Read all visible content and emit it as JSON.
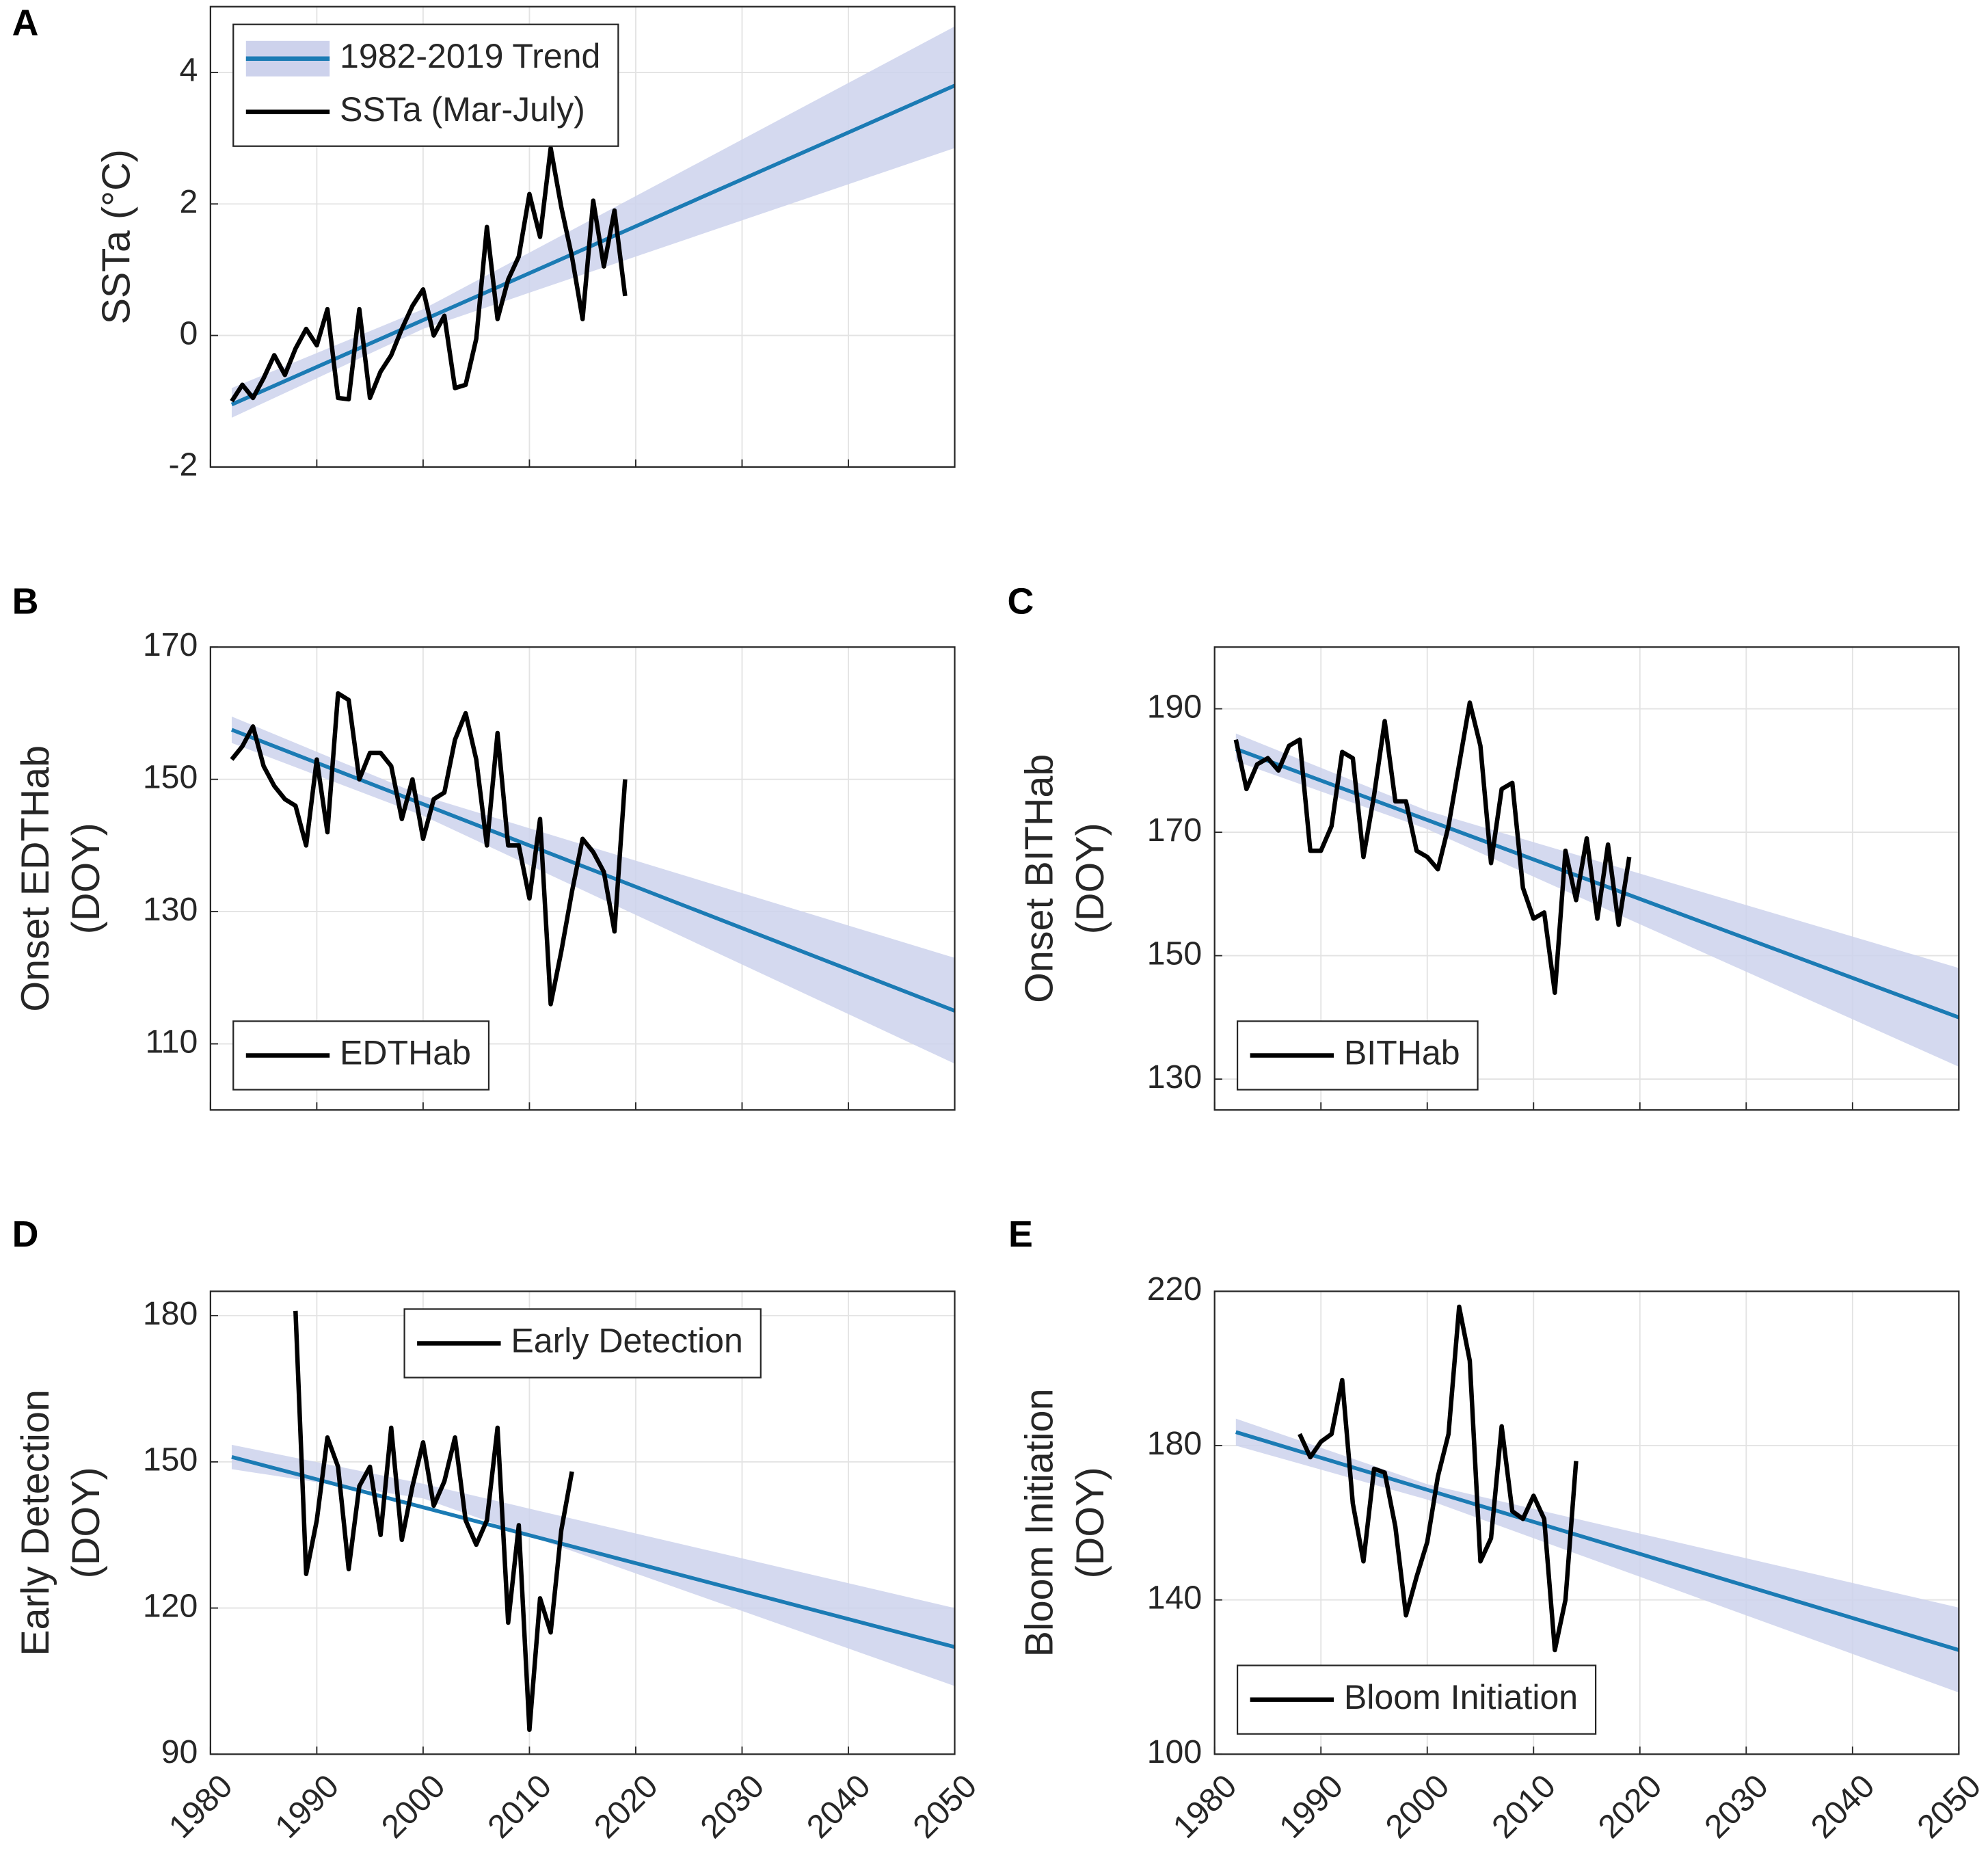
{
  "chart_data": [
    {
      "type": "line",
      "panel": "A",
      "ylabel": [
        "SSTa (°C)"
      ],
      "xlim": [
        1980,
        2050
      ],
      "xticks": [
        1980,
        1990,
        2000,
        2010,
        2020,
        2030,
        2040,
        2050
      ],
      "show_xtick_labels": false,
      "ylim": [
        -2,
        5
      ],
      "yticks": [
        -2,
        0,
        2,
        4
      ],
      "grid": true,
      "legend": "upper left",
      "band": {
        "x": [
          1982,
          2000,
          2050
        ],
        "lower": [
          -1.25,
          0.1,
          2.85
        ],
        "upper": [
          -0.8,
          0.4,
          4.7
        ],
        "color": "#cdd2ec"
      },
      "series": [
        {
          "name": "1982-2019 Trend",
          "color": "#1b7bb4",
          "x": [
            1982,
            2050
          ],
          "values": [
            -1.05,
            3.8
          ]
        },
        {
          "name": "SSTa (Mar-July)",
          "color": "#000000",
          "x": [
            1982,
            1983,
            1984,
            1985,
            1986,
            1987,
            1988,
            1989,
            1990,
            1991,
            1992,
            1993,
            1994,
            1995,
            1996,
            1997,
            1998,
            1999,
            2000,
            2001,
            2002,
            2003,
            2004,
            2005,
            2006,
            2007,
            2008,
            2009,
            2010,
            2011,
            2012,
            2013,
            2014,
            2015,
            2016,
            2017,
            2018,
            2019
          ],
          "values": [
            -1.0,
            -0.75,
            -0.95,
            -0.65,
            -0.3,
            -0.6,
            -0.2,
            0.1,
            -0.15,
            0.4,
            -0.95,
            -0.97,
            0.4,
            -0.95,
            -0.55,
            -0.3,
            0.1,
            0.45,
            0.7,
            0.0,
            0.3,
            -0.8,
            -0.75,
            -0.05,
            1.65,
            0.25,
            0.85,
            1.2,
            2.15,
            1.5,
            2.85,
            1.95,
            1.2,
            0.25,
            2.05,
            1.05,
            1.9,
            0.6
          ]
        }
      ]
    },
    {
      "type": "line",
      "panel": "B",
      "ylabel": [
        "Onset EDTHab",
        "(DOY)"
      ],
      "xlim": [
        1980,
        2050
      ],
      "xticks": [
        1980,
        1990,
        2000,
        2010,
        2020,
        2030,
        2040,
        2050
      ],
      "show_xtick_labels": false,
      "ylim": [
        100,
        170
      ],
      "yticks": [
        110,
        130,
        150,
        170
      ],
      "grid": true,
      "legend": "lower left",
      "band": {
        "x": [
          1982,
          2000,
          2050
        ],
        "lower": [
          155.5,
          144.5,
          107
        ],
        "upper": [
          159.5,
          147.5,
          123
        ],
        "color": "#cdd2ec"
      },
      "series": [
        {
          "color": "#1b7bb4",
          "x": [
            1982,
            2050
          ],
          "values": [
            157.5,
            115
          ]
        },
        {
          "name": "EDTHab",
          "color": "#000000",
          "x": [
            1982,
            1983,
            1984,
            1985,
            1986,
            1987,
            1988,
            1989,
            1990,
            1991,
            1992,
            1993,
            1994,
            1995,
            1996,
            1997,
            1998,
            1999,
            2000,
            2001,
            2002,
            2003,
            2004,
            2005,
            2006,
            2007,
            2008,
            2009,
            2010,
            2011,
            2012,
            2013,
            2014,
            2015,
            2016,
            2017,
            2018,
            2019
          ],
          "values": [
            153,
            155,
            158,
            152,
            149,
            147,
            146,
            140,
            153,
            142,
            163,
            162,
            150,
            154,
            154,
            152,
            144,
            150,
            141,
            147,
            148,
            156,
            160,
            153,
            140,
            157,
            140,
            140,
            132,
            144,
            116,
            124,
            133,
            141,
            139,
            136,
            127,
            150
          ]
        }
      ]
    },
    {
      "type": "line",
      "panel": "C",
      "ylabel": [
        "Onset BITHab",
        "(DOY)"
      ],
      "xlim": [
        1980,
        2050
      ],
      "xticks": [
        1980,
        1990,
        2000,
        2010,
        2020,
        2030,
        2040,
        2050
      ],
      "show_xtick_labels": false,
      "ylim": [
        125,
        200
      ],
      "yticks": [
        130,
        150,
        170,
        190
      ],
      "grid": true,
      "legend": "lower left",
      "band": {
        "x": [
          1982,
          2000,
          2050
        ],
        "lower": [
          181.5,
          170.5,
          132
        ],
        "upper": [
          186,
          173.5,
          148
        ],
        "color": "#cdd2ec"
      },
      "series": [
        {
          "color": "#1b7bb4",
          "x": [
            1982,
            2050
          ],
          "values": [
            183.5,
            140
          ]
        },
        {
          "name": "BITHab",
          "color": "#000000",
          "x": [
            1982,
            1983,
            1984,
            1985,
            1986,
            1987,
            1988,
            1989,
            1990,
            1991,
            1992,
            1993,
            1994,
            1995,
            1996,
            1997,
            1998,
            1999,
            2000,
            2001,
            2002,
            2003,
            2004,
            2005,
            2006,
            2007,
            2008,
            2009,
            2010,
            2011,
            2012,
            2013,
            2014,
            2015,
            2016,
            2017,
            2018,
            2019
          ],
          "values": [
            185,
            177,
            181,
            182,
            180,
            184,
            185,
            167,
            167,
            171,
            183,
            182,
            166,
            176,
            188,
            175,
            175,
            167,
            166,
            164,
            171,
            181,
            191,
            184,
            165,
            177,
            178,
            161,
            156,
            157,
            144,
            167,
            159,
            169,
            156,
            168,
            155,
            166
          ]
        }
      ]
    },
    {
      "type": "line",
      "panel": "D",
      "ylabel": [
        "Early Detection",
        "(DOY)"
      ],
      "xlim": [
        1980,
        2050
      ],
      "xticks": [
        1980,
        1990,
        2000,
        2010,
        2020,
        2030,
        2040,
        2050
      ],
      "show_xtick_labels": true,
      "ylim": [
        90,
        185
      ],
      "yticks": [
        90,
        120,
        150,
        180
      ],
      "grid": true,
      "legend": "upper center",
      "band": {
        "x": [
          1982,
          2000,
          2050
        ],
        "lower": [
          148.5,
          142.5,
          104
        ],
        "upper": [
          153.5,
          145.5,
          120
        ],
        "color": "#cdd2ec"
      },
      "series": [
        {
          "color": "#1b7bb4",
          "x": [
            1982,
            2050
          ],
          "values": [
            151,
            112
          ]
        },
        {
          "name": "Early Detection",
          "color": "#000000",
          "x": [
            1988,
            1989,
            1990,
            1991,
            1992,
            1993,
            1994,
            1995,
            1996,
            1997,
            1998,
            1999,
            2000,
            2001,
            2002,
            2003,
            2004,
            2005,
            2006,
            2007,
            2008,
            2009,
            2010,
            2011,
            2012,
            2013,
            2014
          ],
          "values": [
            181,
            127,
            138,
            155,
            149,
            128,
            145,
            149,
            135,
            157,
            134,
            145,
            154,
            141,
            146,
            155,
            138,
            133,
            138,
            157,
            117,
            137,
            95,
            122,
            115,
            136,
            148
          ]
        }
      ]
    },
    {
      "type": "line",
      "panel": "E",
      "ylabel": [
        "Bloom Initiation",
        "(DOY)"
      ],
      "xlim": [
        1980,
        2050
      ],
      "xticks": [
        1980,
        1990,
        2000,
        2010,
        2020,
        2030,
        2040,
        2050
      ],
      "show_xtick_labels": true,
      "ylim": [
        100,
        220
      ],
      "yticks": [
        100,
        140,
        180,
        220
      ],
      "grid": true,
      "legend": "lower left",
      "band": {
        "x": [
          1982,
          2000,
          2050
        ],
        "lower": [
          180,
          166,
          116
        ],
        "upper": [
          187,
          170,
          138
        ],
        "color": "#cdd2ec"
      },
      "series": [
        {
          "color": "#1b7bb4",
          "x": [
            1982,
            2050
          ],
          "values": [
            183.5,
            127
          ]
        },
        {
          "name": "Bloom Initiation",
          "color": "#000000",
          "x": [
            1988,
            1989,
            1990,
            1991,
            1992,
            1993,
            1994,
            1995,
            1996,
            1997,
            1998,
            1999,
            2000,
            2001,
            2002,
            2003,
            2004,
            2005,
            2006,
            2007,
            2008,
            2009,
            2010,
            2011,
            2012,
            2013,
            2014
          ],
          "values": [
            183,
            177,
            181,
            183,
            197,
            165,
            150,
            174,
            173,
            159,
            136,
            146,
            155,
            172,
            183,
            216,
            202,
            150,
            156,
            185,
            163,
            161,
            167,
            161,
            127,
            140,
            176
          ]
        }
      ]
    }
  ]
}
